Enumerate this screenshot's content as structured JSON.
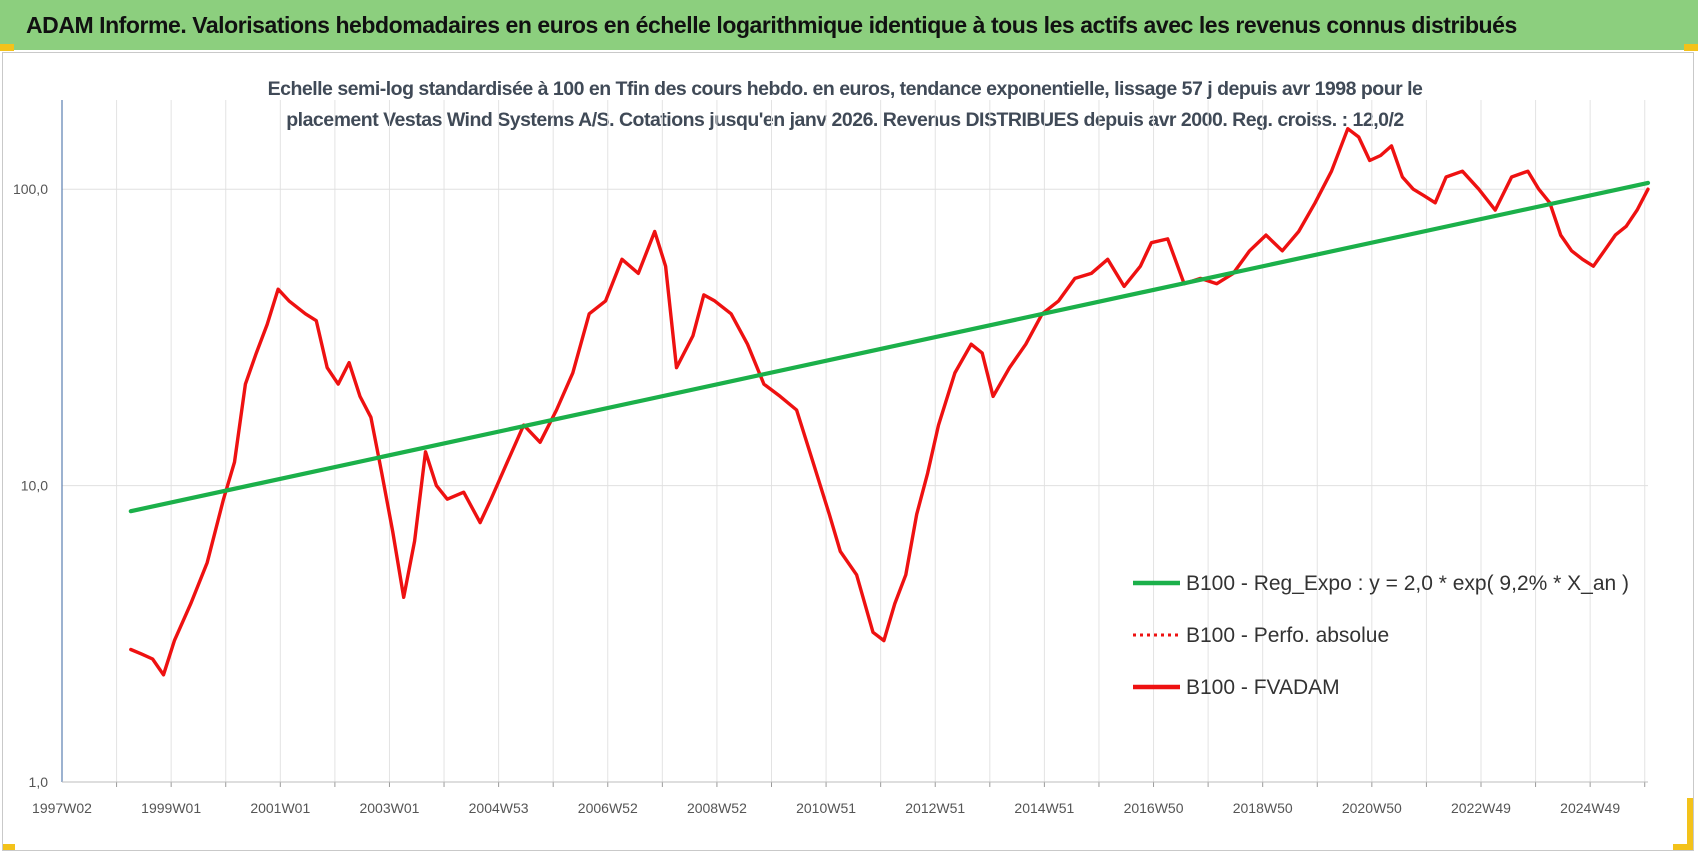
{
  "header": {
    "title": "ADAM Informe. Valorisations hebdomadaires en euros en échelle logarithmique identique à tous les actifs avec les revenus connus distribués"
  },
  "chart_data": {
    "type": "line",
    "title": "",
    "subtitle_lines": [
      "Echelle semi-log standardisée à 100 en Tfin des cours hebdo. en euros, tendance exponentielle, lissage 57 j depuis avr 1998 pour le",
      "placement Vestas Wind Systems A/S. Cotations jusqu'en janv 2026.  Revenus DISTRIBUES depuis avr 2000. Reg. croiss. : 12,0/2"
    ],
    "xlabel": "",
    "ylabel": "",
    "y_scale": "log",
    "ylim": [
      1,
      200
    ],
    "xlim": [
      1997.04,
      2026.1
    ],
    "y_ticks": [
      1,
      10,
      100
    ],
    "y_tick_labels": [
      "1,0",
      "10,0",
      "100,0"
    ],
    "x_ticks": [
      1997.04,
      1999.04,
      2001.04,
      2003.04,
      2005.04,
      2007.04,
      2009.04,
      2011.04,
      2013.04,
      2015.04,
      2017.04,
      2019.04,
      2021.04,
      2023.04,
      2025.04
    ],
    "x_tick_labels": [
      "1997W02",
      "1999W01",
      "2001W01",
      "2003W01",
      "2004W53",
      "2006W52",
      "2008W52",
      "2010W51",
      "2012W51",
      "2014W51",
      "2016W50",
      "2018W50",
      "2020W50",
      "2022W49",
      "2024W49"
    ],
    "grid": true,
    "legend_position": "right-center",
    "colors": {
      "trend": "#1bb04a",
      "fvadam": "#ee1111",
      "perfo": "#ee1111"
    },
    "series": [
      {
        "name": "B100 - Reg_Expo : y = 2,0 * exp( 9,2% *  X_an )",
        "style": "solid",
        "x": [
          1998.3,
          2026.1
        ],
        "values": [
          8.2,
          105
        ]
      },
      {
        "name": "B100 - Perfo. absolue",
        "style": "dotted",
        "x": [],
        "values": []
      },
      {
        "name": "B100 - FVADAM",
        "style": "solid",
        "x": [
          1998.3,
          1998.5,
          1998.7,
          1998.9,
          1999.1,
          1999.4,
          1999.7,
          2000.0,
          2000.2,
          2000.4,
          2000.6,
          2000.8,
          2001.0,
          2001.2,
          2001.5,
          2001.7,
          2001.9,
          2002.1,
          2002.3,
          2002.5,
          2002.7,
          2002.9,
          2003.1,
          2003.3,
          2003.5,
          2003.7,
          2003.9,
          2004.1,
          2004.4,
          2004.7,
          2004.9,
          2005.2,
          2005.5,
          2005.8,
          2006.1,
          2006.4,
          2006.7,
          2007.0,
          2007.3,
          2007.6,
          2007.9,
          2008.1,
          2008.3,
          2008.6,
          2008.8,
          2009.0,
          2009.3,
          2009.6,
          2009.9,
          2010.2,
          2010.5,
          2010.8,
          2011.1,
          2011.3,
          2011.6,
          2011.9,
          2012.1,
          2012.3,
          2012.5,
          2012.7,
          2012.9,
          2013.1,
          2013.4,
          2013.7,
          2013.9,
          2014.1,
          2014.4,
          2014.7,
          2015.0,
          2015.3,
          2015.6,
          2015.9,
          2016.2,
          2016.5,
          2016.8,
          2017.0,
          2017.3,
          2017.6,
          2017.9,
          2018.2,
          2018.5,
          2018.8,
          2019.1,
          2019.4,
          2019.7,
          2020.0,
          2020.3,
          2020.6,
          2020.8,
          2021.0,
          2021.2,
          2021.4,
          2021.6,
          2021.8,
          2022.0,
          2022.2,
          2022.4,
          2022.7,
          2023.0,
          2023.3,
          2023.6,
          2023.9,
          2024.1,
          2024.3,
          2024.5,
          2024.7,
          2024.9,
          2025.1,
          2025.3,
          2025.5,
          2025.7,
          2025.9,
          2026.1
        ],
        "values": [
          2.8,
          2.7,
          2.6,
          2.3,
          3.0,
          4.0,
          5.5,
          9.0,
          12.0,
          22.0,
          28.0,
          35.0,
          46.0,
          42.0,
          38.0,
          36.0,
          25.0,
          22.0,
          26.0,
          20.0,
          17.0,
          11.0,
          7.0,
          4.2,
          6.5,
          13.0,
          10.0,
          9.0,
          9.5,
          7.5,
          9.0,
          12.0,
          16.0,
          14.0,
          18.0,
          24.0,
          38.0,
          42.0,
          58.0,
          52.0,
          72.0,
          55.0,
          25.0,
          32.0,
          44.0,
          42.0,
          38.0,
          30.0,
          22.0,
          20.0,
          18.0,
          12.0,
          8.0,
          6.0,
          5.0,
          3.2,
          3.0,
          4.0,
          5.0,
          8.0,
          11.0,
          16.0,
          24.0,
          30.0,
          28.0,
          20.0,
          25.0,
          30.0,
          38.0,
          42.0,
          50.0,
          52.0,
          58.0,
          47.0,
          55.0,
          66.0,
          68.0,
          48.0,
          50.0,
          48.0,
          52.0,
          62.0,
          70.0,
          62.0,
          72.0,
          90.0,
          115.0,
          160.0,
          150.0,
          125.0,
          130.0,
          140.0,
          110.0,
          100.0,
          95.0,
          90.0,
          110.0,
          115.0,
          100.0,
          85.0,
          110.0,
          115.0,
          100.0,
          90.0,
          70.0,
          62.0,
          58.0,
          55.0,
          62.0,
          70.0,
          75.0,
          85.0,
          100.0
        ]
      }
    ]
  }
}
